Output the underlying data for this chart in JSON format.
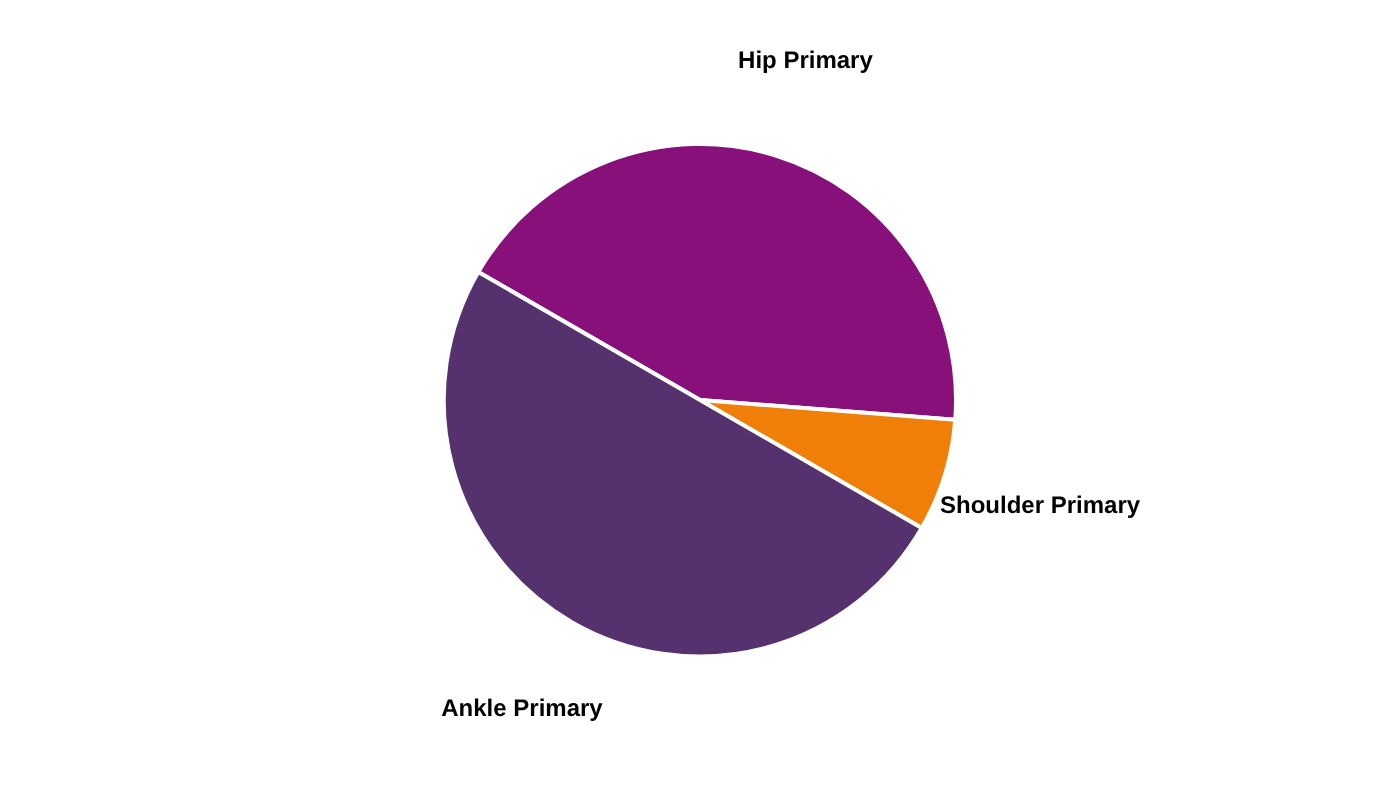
{
  "chart_data": {
    "type": "pie",
    "categories": [
      "Hip Primary",
      "Shoulder Primary",
      "Ankle Primary"
    ],
    "values": [
      42.9,
      7.1,
      50
    ],
    "colors": [
      "#87107a",
      "#f07f09",
      "#55326e"
    ],
    "legend": false
  }
}
